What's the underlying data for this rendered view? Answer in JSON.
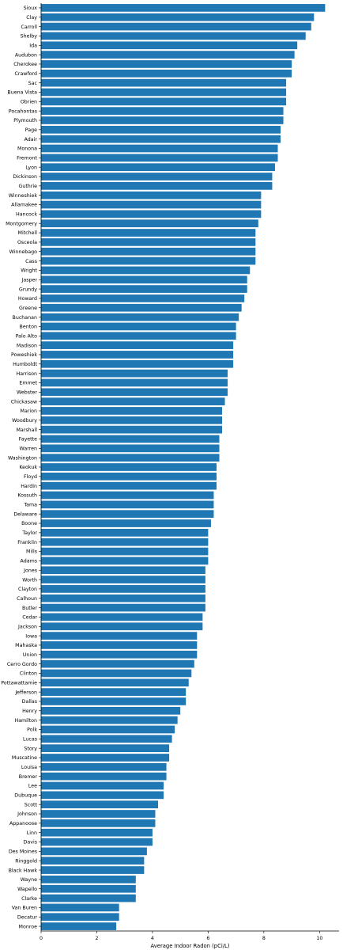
{
  "chart_data": {
    "type": "bar",
    "orientation": "horizontal",
    "title": "",
    "xlabel": "Average Indoor Radon (pCi/L)",
    "ylabel": "",
    "xlim": [
      0,
      10.7
    ],
    "xticks": [
      0,
      2,
      4,
      6,
      8,
      10
    ],
    "grid": false,
    "legend": "none",
    "bar_color": "#1f77b4",
    "categories": [
      "Sioux",
      "Clay",
      "Carroll",
      "Shelby",
      "Ida",
      "Audubon",
      "Cherokee",
      "Crawford",
      "Sac",
      "Buena Vista",
      "Obrien",
      "Pocahontas",
      "Plymouth",
      "Page",
      "Adair",
      "Monona",
      "Fremont",
      "Lyon",
      "Dickinson",
      "Guthrie",
      "Winneshiek",
      "Allamakee",
      "Hancock",
      "Montgomery",
      "Mitchell",
      "Osceola",
      "Winnebago",
      "Cass",
      "Wright",
      "Jasper",
      "Grundy",
      "Howard",
      "Greene",
      "Buchanan",
      "Benton",
      "Palo Alto",
      "Madison",
      "Poweshiek",
      "Humboldt",
      "Harrison",
      "Emmet",
      "Webster",
      "Chickasaw",
      "Marion",
      "Woodbury",
      "Marshall",
      "Fayette",
      "Warren",
      "Washington",
      "Keokuk",
      "Floyd",
      "Hardin",
      "Kossuth",
      "Tama",
      "Delaware",
      "Boone",
      "Taylor",
      "Franklin",
      "Mills",
      "Adams",
      "Jones",
      "Worth",
      "Clayton",
      "Calhoun",
      "Butler",
      "Cedar",
      "Jackson",
      "Iowa",
      "Mahaska",
      "Union",
      "Cerro Gordo",
      "Clinton",
      "Pottawattamie",
      "Jefferson",
      "Dallas",
      "Henry",
      "Hamilton",
      "Polk",
      "Lucas",
      "Story",
      "Muscatine",
      "Louisa",
      "Bremer",
      "Lee",
      "Dubuque",
      "Scott",
      "Johnson",
      "Appanoose",
      "Linn",
      "Davis",
      "Des Moines",
      "Ringgold",
      "Black Hawk",
      "Wayne",
      "Wapello",
      "Clarke",
      "Van Buren",
      "Decatur",
      "Monroe"
    ],
    "values": [
      10.2,
      9.8,
      9.7,
      9.5,
      9.2,
      9.1,
      9.0,
      9.0,
      8.8,
      8.8,
      8.8,
      8.7,
      8.7,
      8.6,
      8.6,
      8.5,
      8.5,
      8.4,
      8.3,
      8.3,
      7.9,
      7.9,
      7.9,
      7.8,
      7.7,
      7.7,
      7.7,
      7.7,
      7.5,
      7.4,
      7.4,
      7.3,
      7.2,
      7.1,
      7.0,
      7.0,
      6.9,
      6.9,
      6.9,
      6.7,
      6.7,
      6.7,
      6.6,
      6.5,
      6.5,
      6.5,
      6.4,
      6.4,
      6.4,
      6.3,
      6.3,
      6.3,
      6.2,
      6.2,
      6.2,
      6.1,
      6.0,
      6.0,
      6.0,
      6.0,
      5.9,
      5.9,
      5.9,
      5.9,
      5.9,
      5.8,
      5.8,
      5.6,
      5.6,
      5.6,
      5.5,
      5.4,
      5.3,
      5.2,
      5.2,
      5.0,
      4.9,
      4.8,
      4.7,
      4.6,
      4.6,
      4.5,
      4.5,
      4.4,
      4.4,
      4.2,
      4.1,
      4.1,
      4.0,
      4.0,
      3.8,
      3.7,
      3.7,
      3.4,
      3.4,
      3.4,
      2.8,
      2.8,
      2.7
    ]
  }
}
